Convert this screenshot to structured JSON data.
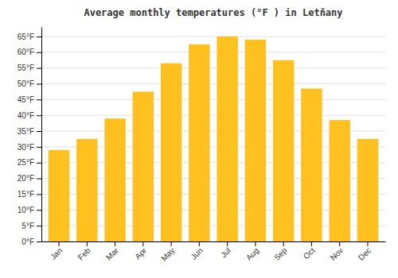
{
  "chart_data": {
    "type": "bar",
    "title": "Average monthly temperatures (°F ) in Letňany",
    "categories": [
      "Jan",
      "Feb",
      "Mar",
      "Apr",
      "May",
      "Jun",
      "Jul",
      "Aug",
      "Sep",
      "Oct",
      "Nov",
      "Dec"
    ],
    "values": [
      29,
      32.5,
      39,
      47.5,
      56.5,
      62.5,
      65,
      64,
      57.5,
      48.5,
      38.5,
      32.5
    ],
    "color": "#FFC020",
    "ylim": [
      0,
      68
    ],
    "yticks": [
      {
        "value": 0,
        "label": "0°F"
      },
      {
        "value": 5,
        "label": "5°F"
      },
      {
        "value": 10,
        "label": "10°F"
      },
      {
        "value": 15,
        "label": "15°F"
      },
      {
        "value": 20,
        "label": "20°F"
      },
      {
        "value": 25,
        "label": "25°F"
      },
      {
        "value": 30,
        "label": "30°F"
      },
      {
        "value": 35,
        "label": "35°F"
      },
      {
        "value": 40,
        "label": "40°F"
      },
      {
        "value": 45,
        "label": "45°F"
      },
      {
        "value": 50,
        "label": "50°F"
      },
      {
        "value": 55,
        "label": "55°F"
      },
      {
        "value": 60,
        "label": "60°F"
      },
      {
        "value": 65,
        "label": "65°F"
      }
    ],
    "grid": true
  }
}
